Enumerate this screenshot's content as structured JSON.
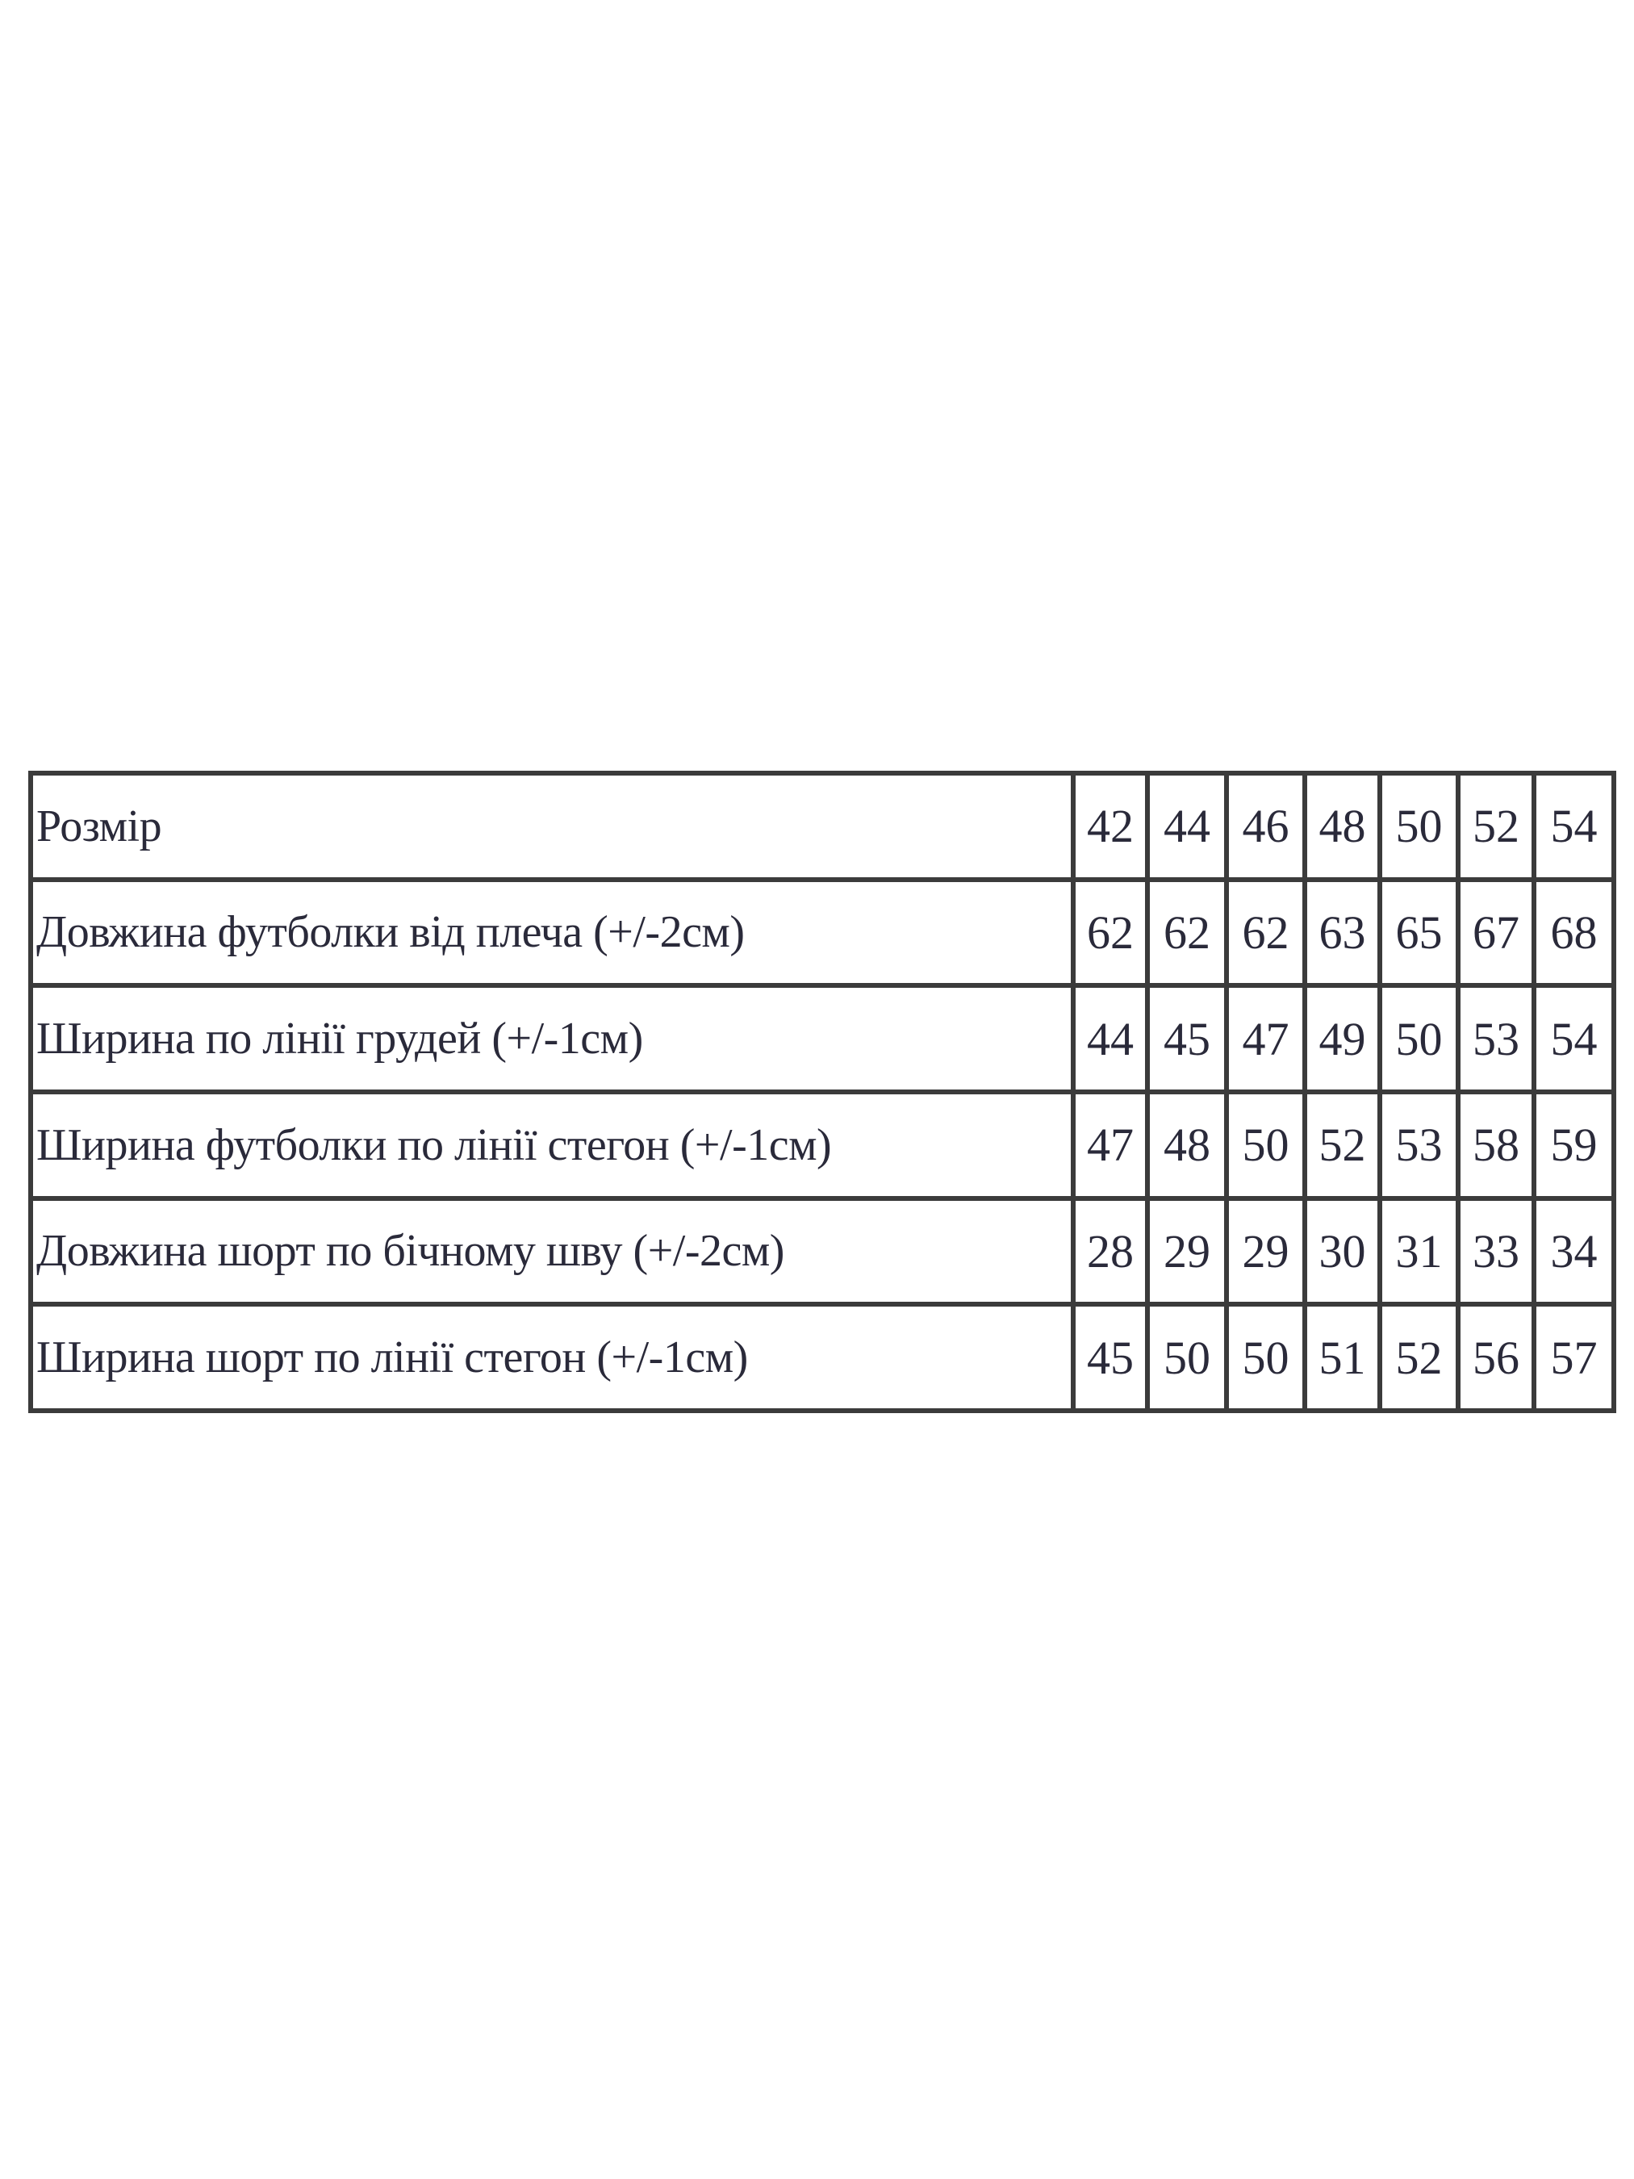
{
  "size_chart": {
    "rows": [
      {
        "label": "Розмір",
        "values": [
          "42",
          "44",
          "46",
          "48",
          "50",
          "52",
          "54"
        ]
      },
      {
        "label": "Довжина футболки від плеча (+/-2см)",
        "values": [
          "62",
          "62",
          "62",
          "63",
          "65",
          "67",
          "68"
        ]
      },
      {
        "label": "Ширина по лінії грудей (+/-1см)",
        "values": [
          "44",
          "45",
          "47",
          "49",
          "50",
          "53",
          "54"
        ]
      },
      {
        "label": "Ширина футболки по лінії стегон (+/-1см)",
        "values": [
          "47",
          "48",
          "50",
          "52",
          "53",
          "58",
          "59"
        ]
      },
      {
        "label": "Довжина шорт по бічному шву (+/-2см)",
        "values": [
          "28",
          "29",
          "29",
          "30",
          "31",
          "33",
          "34"
        ]
      },
      {
        "label": "Ширина шорт по лінії стегон (+/-1см)",
        "values": [
          "45",
          "50",
          "50",
          "51",
          "52",
          "56",
          "57"
        ]
      }
    ]
  }
}
